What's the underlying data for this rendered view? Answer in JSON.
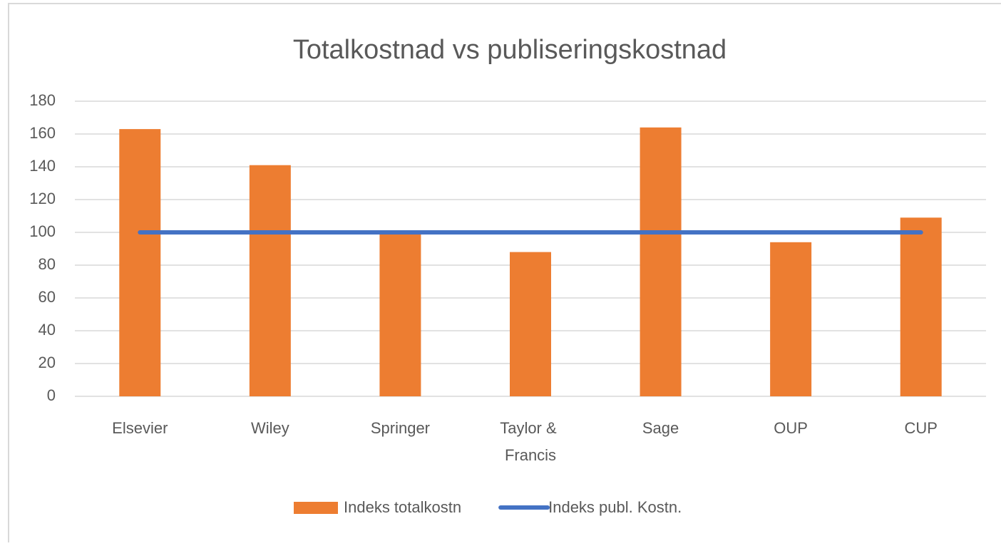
{
  "chart_data": {
    "type": "bar",
    "title": "Totalkostnad vs publiseringskostnad",
    "categories": [
      "Elsevier",
      "Wiley",
      "Springer",
      "Taylor & Francis",
      "Sage",
      "OUP",
      "CUP"
    ],
    "series": [
      {
        "name": "Indeks totalkostn",
        "type": "bar",
        "color": "#ed7d31",
        "values": [
          163,
          141,
          100,
          88,
          164,
          94,
          109
        ]
      },
      {
        "name": "Indeks publ. Kostn.",
        "type": "line",
        "color": "#4472c4",
        "values": [
          100,
          100,
          100,
          100,
          100,
          100,
          100
        ]
      }
    ],
    "ylim": [
      0,
      180
    ],
    "yticks": [
      0,
      20,
      40,
      60,
      80,
      100,
      120,
      140,
      160,
      180
    ],
    "grid": true,
    "legend": "bottom"
  }
}
